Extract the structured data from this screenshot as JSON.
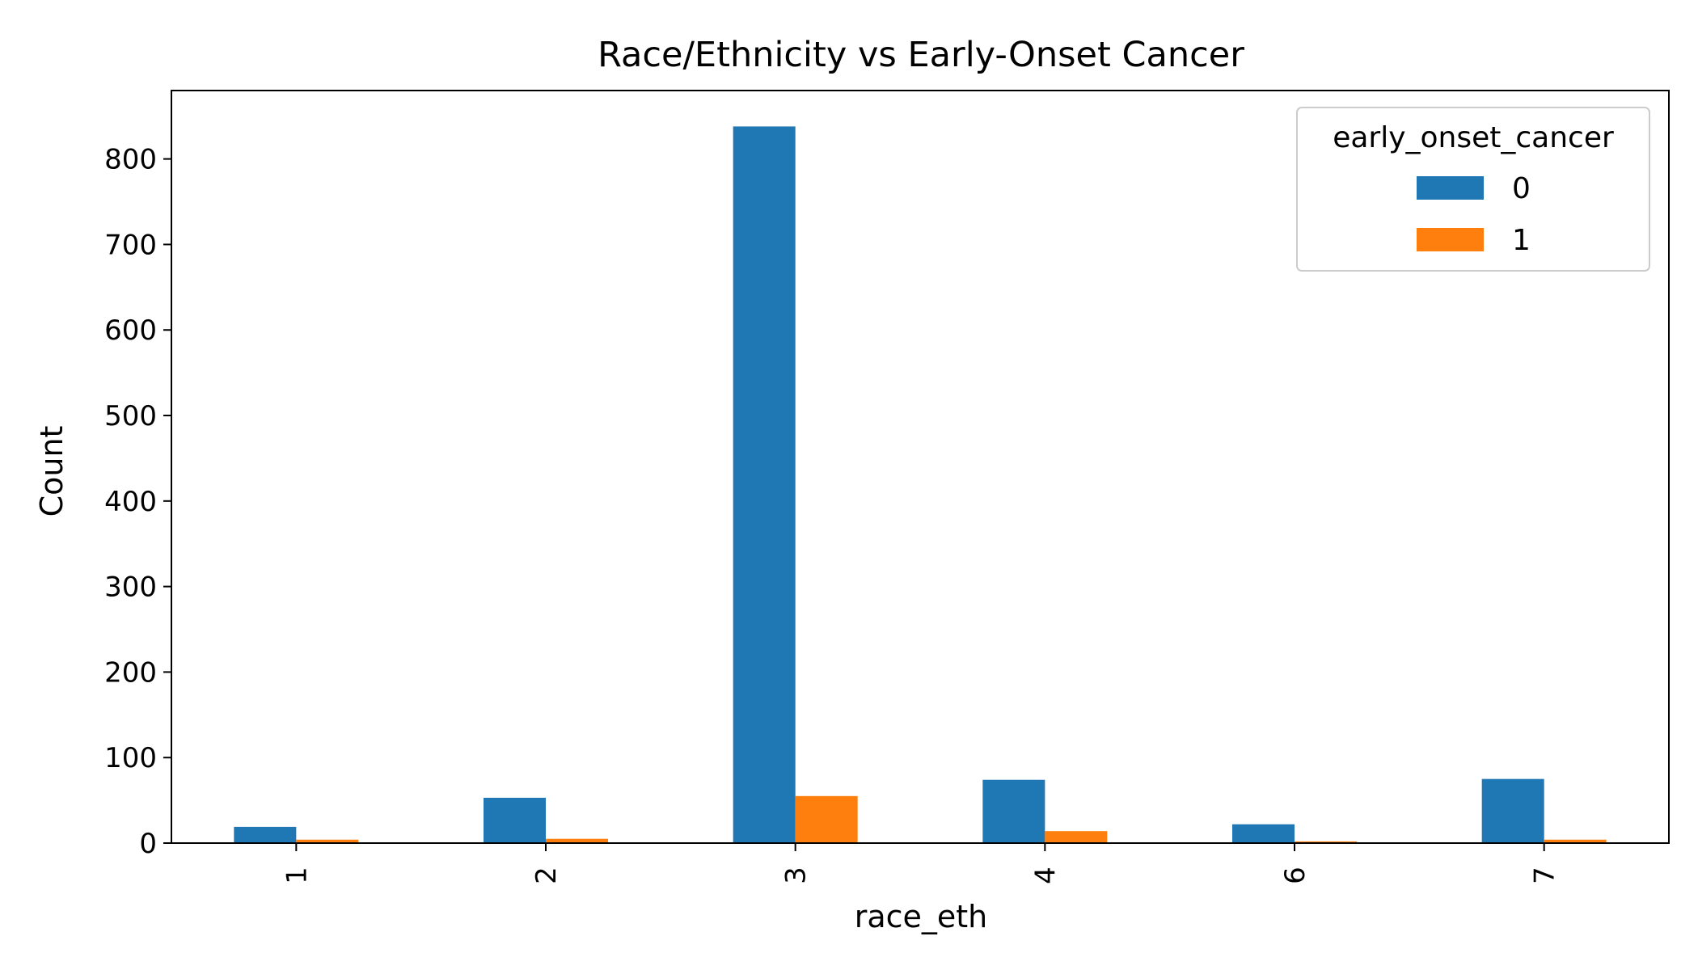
{
  "chart_data": {
    "type": "bar",
    "title": "Race/Ethnicity vs Early-Onset Cancer",
    "xlabel": "race_eth",
    "ylabel": "Count",
    "categories": [
      "1",
      "2",
      "3",
      "4",
      "6",
      "7"
    ],
    "series": [
      {
        "name": "0",
        "values": [
          19,
          53,
          838,
          74,
          22,
          75
        ],
        "color": "#1f77b4"
      },
      {
        "name": "1",
        "values": [
          4,
          5,
          55,
          14,
          2,
          4
        ],
        "color": "#ff7f0e"
      }
    ],
    "ylim": [
      0,
      880
    ],
    "yticks": [
      0,
      100,
      200,
      300,
      400,
      500,
      600,
      700,
      800
    ],
    "legend": {
      "title": "early_onset_cancer",
      "placement": "top-right"
    },
    "grid": false
  }
}
